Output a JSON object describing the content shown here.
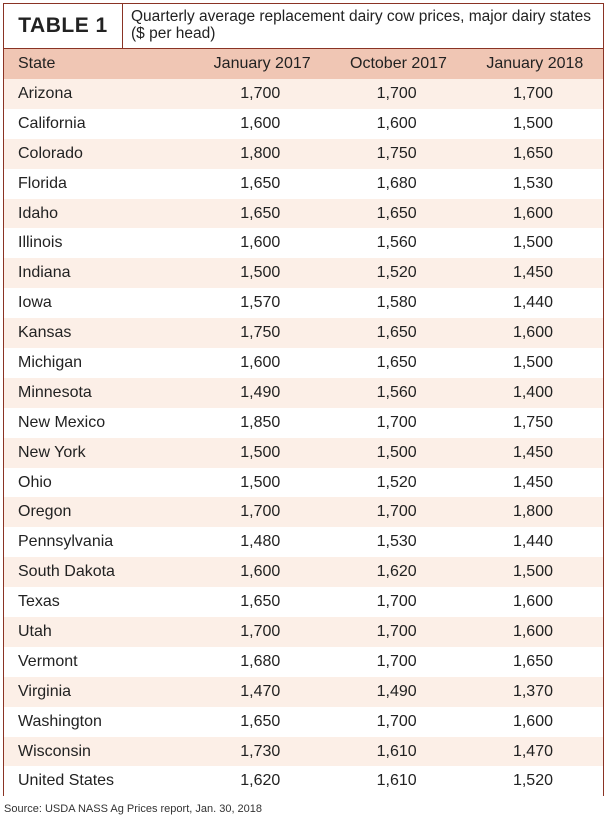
{
  "header": {
    "label": "TABLE 1",
    "title": "Quarterly average replacement dairy cow prices, major dairy states ($ per head)"
  },
  "table": {
    "columns": [
      "State",
      "January 2017",
      "October 2017",
      "January 2018"
    ],
    "rows": [
      [
        "Arizona",
        "1,700",
        "1,700",
        "1,700"
      ],
      [
        "California",
        "1,600",
        "1,600",
        "1,500"
      ],
      [
        "Colorado",
        "1,800",
        "1,750",
        "1,650"
      ],
      [
        "Florida",
        "1,650",
        "1,680",
        "1,530"
      ],
      [
        "Idaho",
        "1,650",
        "1,650",
        "1,600"
      ],
      [
        "Illinois",
        "1,600",
        "1,560",
        "1,500"
      ],
      [
        "Indiana",
        "1,500",
        "1,520",
        "1,450"
      ],
      [
        "Iowa",
        "1,570",
        "1,580",
        "1,440"
      ],
      [
        "Kansas",
        "1,750",
        "1,650",
        "1,600"
      ],
      [
        "Michigan",
        "1,600",
        "1,650",
        "1,500"
      ],
      [
        "Minnesota",
        "1,490",
        "1,560",
        "1,400"
      ],
      [
        "New Mexico",
        "1,850",
        "1,700",
        "1,750"
      ],
      [
        "New York",
        "1,500",
        "1,500",
        "1,450"
      ],
      [
        "Ohio",
        "1,500",
        "1,520",
        "1,450"
      ],
      [
        "Oregon",
        "1,700",
        "1,700",
        "1,800"
      ],
      [
        "Pennsylvania",
        "1,480",
        "1,530",
        "1,440"
      ],
      [
        "South Dakota",
        "1,600",
        "1,620",
        "1,500"
      ],
      [
        "Texas",
        "1,650",
        "1,700",
        "1,600"
      ],
      [
        "Utah",
        "1,700",
        "1,700",
        "1,600"
      ],
      [
        "Vermont",
        "1,680",
        "1,700",
        "1,650"
      ],
      [
        "Virginia",
        "1,470",
        "1,490",
        "1,370"
      ],
      [
        "Washington",
        "1,650",
        "1,700",
        "1,600"
      ],
      [
        "Wisconsin",
        "1,730",
        "1,610",
        "1,470"
      ],
      [
        "United States",
        "1,620",
        "1,610",
        "1,520"
      ]
    ]
  },
  "source": "Source: USDA NASS Ag Prices report, Jan. 30, 2018"
}
